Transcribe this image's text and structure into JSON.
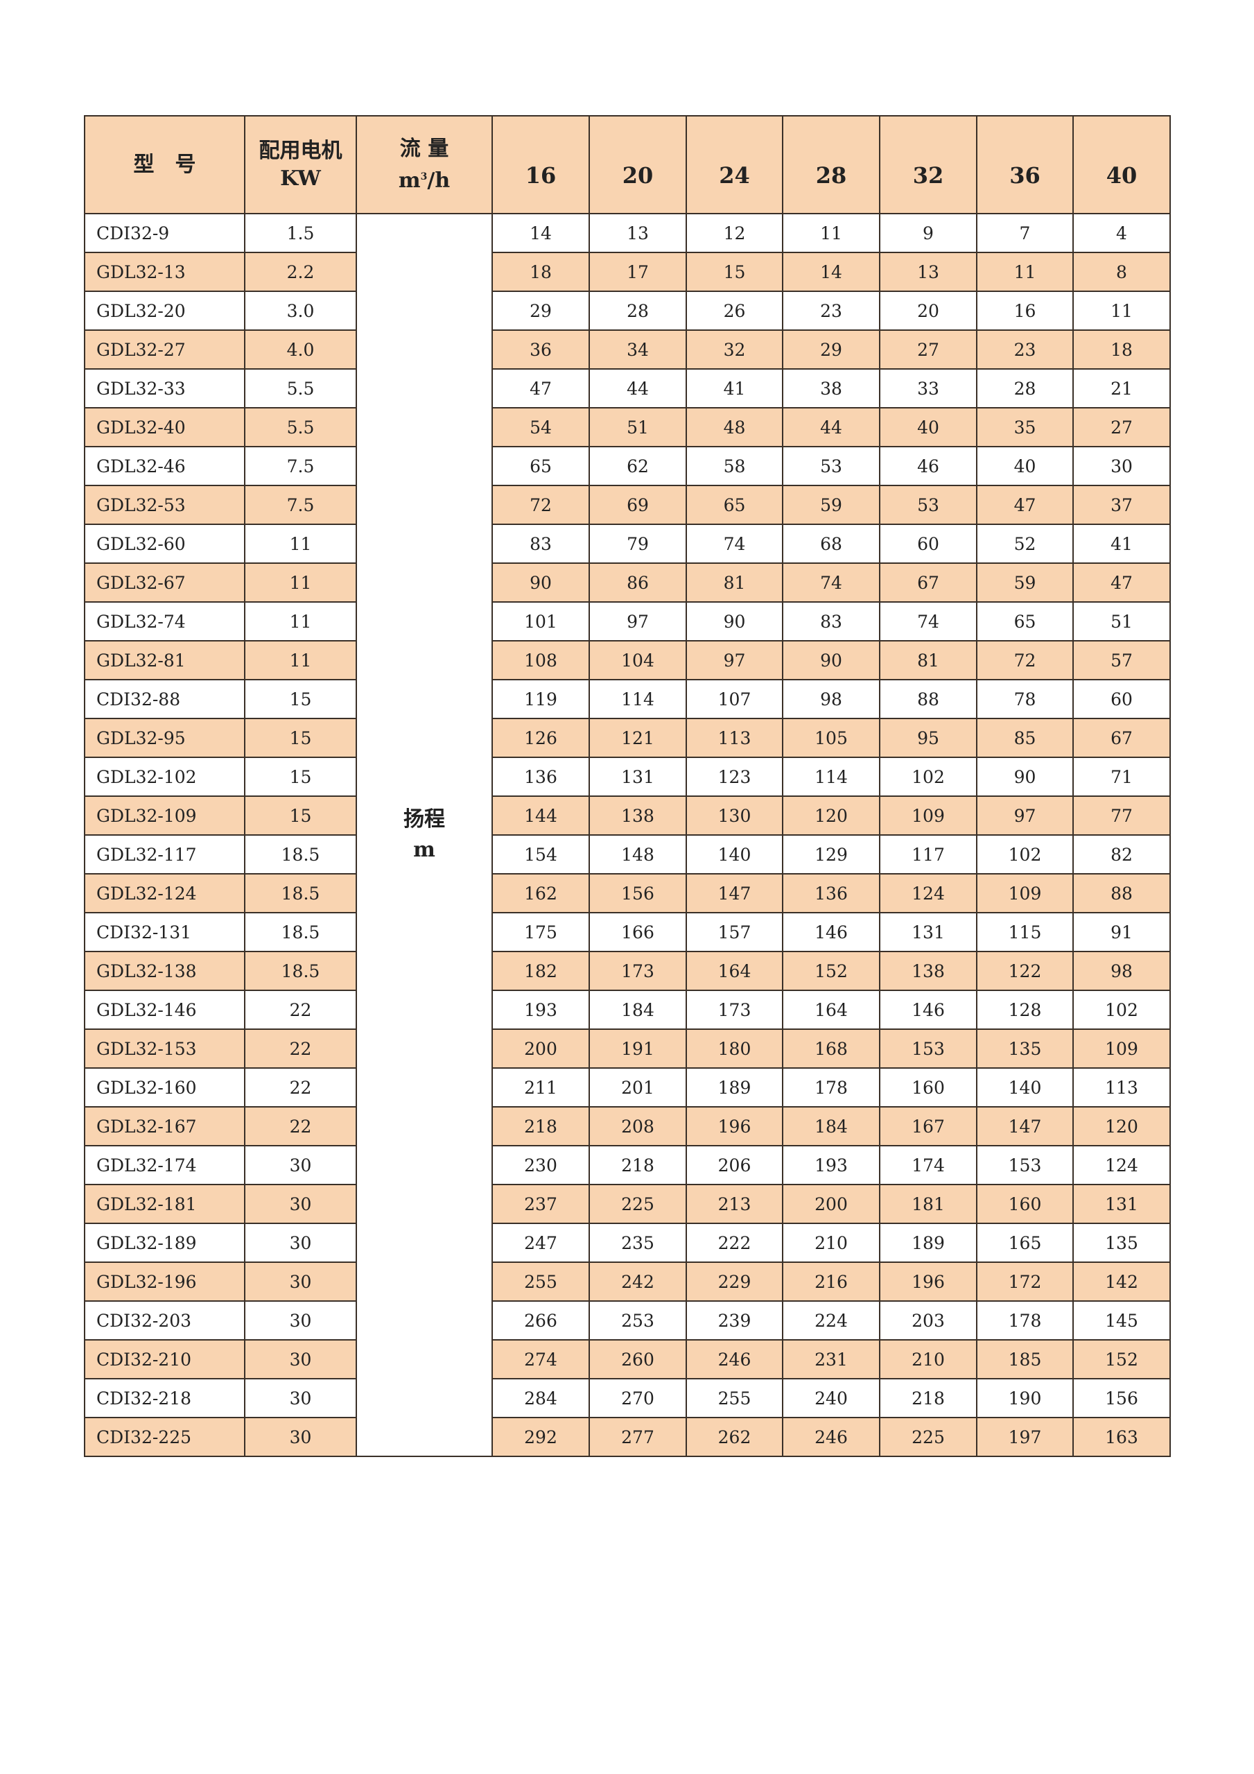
{
  "header": {
    "model": "型　号",
    "motor_line1": "配用电机",
    "motor_line2": "KW",
    "flow_line1": "流 量",
    "flow_unit_m": "m",
    "flow_unit_sup": "3",
    "flow_unit_rest": "/h",
    "flows": [
      "16",
      "20",
      "24",
      "28",
      "32",
      "36",
      "40"
    ]
  },
  "head_label": {
    "line1": "扬程",
    "line2": "m"
  },
  "colors": {
    "band": "#F9D4B1",
    "border": "#3a3028"
  },
  "rows": [
    {
      "model": "CDI32-9",
      "kw": "1.5",
      "heads": [
        "14",
        "13",
        "12",
        "11",
        "9",
        "7",
        "4"
      ]
    },
    {
      "model": "GDL32-13",
      "kw": "2.2",
      "heads": [
        "18",
        "17",
        "15",
        "14",
        "13",
        "11",
        "8"
      ]
    },
    {
      "model": "GDL32-20",
      "kw": "3.0",
      "heads": [
        "29",
        "28",
        "26",
        "23",
        "20",
        "16",
        "11"
      ]
    },
    {
      "model": "GDL32-27",
      "kw": "4.0",
      "heads": [
        "36",
        "34",
        "32",
        "29",
        "27",
        "23",
        "18"
      ]
    },
    {
      "model": "GDL32-33",
      "kw": "5.5",
      "heads": [
        "47",
        "44",
        "41",
        "38",
        "33",
        "28",
        "21"
      ]
    },
    {
      "model": "GDL32-40",
      "kw": "5.5",
      "heads": [
        "54",
        "51",
        "48",
        "44",
        "40",
        "35",
        "27"
      ]
    },
    {
      "model": "GDL32-46",
      "kw": "7.5",
      "heads": [
        "65",
        "62",
        "58",
        "53",
        "46",
        "40",
        "30"
      ]
    },
    {
      "model": "GDL32-53",
      "kw": "7.5",
      "heads": [
        "72",
        "69",
        "65",
        "59",
        "53",
        "47",
        "37"
      ]
    },
    {
      "model": "GDL32-60",
      "kw": "11",
      "heads": [
        "83",
        "79",
        "74",
        "68",
        "60",
        "52",
        "41"
      ]
    },
    {
      "model": "GDL32-67",
      "kw": "11",
      "heads": [
        "90",
        "86",
        "81",
        "74",
        "67",
        "59",
        "47"
      ]
    },
    {
      "model": "GDL32-74",
      "kw": "11",
      "heads": [
        "101",
        "97",
        "90",
        "83",
        "74",
        "65",
        "51"
      ]
    },
    {
      "model": "GDL32-81",
      "kw": "11",
      "heads": [
        "108",
        "104",
        "97",
        "90",
        "81",
        "72",
        "57"
      ]
    },
    {
      "model": "CDI32-88",
      "kw": "15",
      "heads": [
        "119",
        "114",
        "107",
        "98",
        "88",
        "78",
        "60"
      ]
    },
    {
      "model": "GDL32-95",
      "kw": "15",
      "heads": [
        "126",
        "121",
        "113",
        "105",
        "95",
        "85",
        "67"
      ]
    },
    {
      "model": "GDL32-102",
      "kw": "15",
      "heads": [
        "136",
        "131",
        "123",
        "114",
        "102",
        "90",
        "71"
      ]
    },
    {
      "model": "GDL32-109",
      "kw": "15",
      "heads": [
        "144",
        "138",
        "130",
        "120",
        "109",
        "97",
        "77"
      ]
    },
    {
      "model": "GDL32-117",
      "kw": "18.5",
      "heads": [
        "154",
        "148",
        "140",
        "129",
        "117",
        "102",
        "82"
      ]
    },
    {
      "model": "GDL32-124",
      "kw": "18.5",
      "heads": [
        "162",
        "156",
        "147",
        "136",
        "124",
        "109",
        "88"
      ]
    },
    {
      "model": "CDI32-131",
      "kw": "18.5",
      "heads": [
        "175",
        "166",
        "157",
        "146",
        "131",
        "115",
        "91"
      ]
    },
    {
      "model": "GDL32-138",
      "kw": "18.5",
      "heads": [
        "182",
        "173",
        "164",
        "152",
        "138",
        "122",
        "98"
      ]
    },
    {
      "model": "GDL32-146",
      "kw": "22",
      "heads": [
        "193",
        "184",
        "173",
        "164",
        "146",
        "128",
        "102"
      ]
    },
    {
      "model": "GDL32-153",
      "kw": "22",
      "heads": [
        "200",
        "191",
        "180",
        "168",
        "153",
        "135",
        "109"
      ]
    },
    {
      "model": "GDL32-160",
      "kw": "22",
      "heads": [
        "211",
        "201",
        "189",
        "178",
        "160",
        "140",
        "113"
      ]
    },
    {
      "model": "GDL32-167",
      "kw": "22",
      "heads": [
        "218",
        "208",
        "196",
        "184",
        "167",
        "147",
        "120"
      ]
    },
    {
      "model": "GDL32-174",
      "kw": "30",
      "heads": [
        "230",
        "218",
        "206",
        "193",
        "174",
        "153",
        "124"
      ]
    },
    {
      "model": "GDL32-181",
      "kw": "30",
      "heads": [
        "237",
        "225",
        "213",
        "200",
        "181",
        "160",
        "131"
      ]
    },
    {
      "model": "GDL32-189",
      "kw": "30",
      "heads": [
        "247",
        "235",
        "222",
        "210",
        "189",
        "165",
        "135"
      ]
    },
    {
      "model": "GDL32-196",
      "kw": "30",
      "heads": [
        "255",
        "242",
        "229",
        "216",
        "196",
        "172",
        "142"
      ]
    },
    {
      "model": "CDI32-203",
      "kw": "30",
      "heads": [
        "266",
        "253",
        "239",
        "224",
        "203",
        "178",
        "145"
      ]
    },
    {
      "model": "CDI32-210",
      "kw": "30",
      "heads": [
        "274",
        "260",
        "246",
        "231",
        "210",
        "185",
        "152"
      ]
    },
    {
      "model": "CDI32-218",
      "kw": "30",
      "heads": [
        "284",
        "270",
        "255",
        "240",
        "218",
        "190",
        "156"
      ]
    },
    {
      "model": "CDI32-225",
      "kw": "30",
      "heads": [
        "292",
        "277",
        "262",
        "246",
        "225",
        "197",
        "163"
      ]
    }
  ]
}
